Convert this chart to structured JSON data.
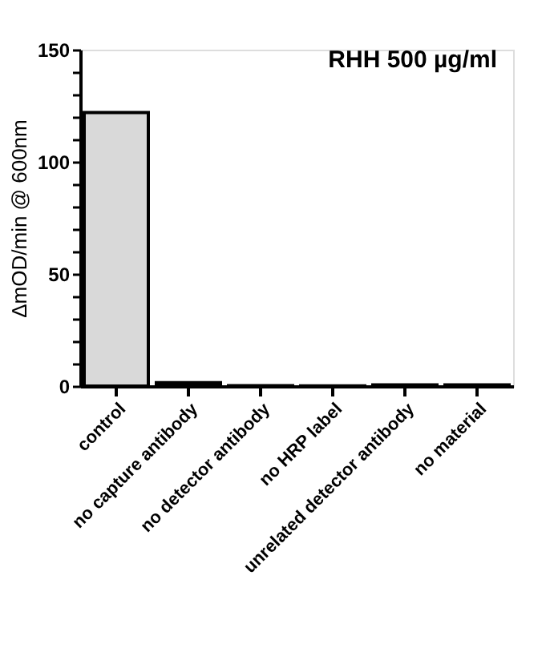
{
  "chart_data": {
    "type": "bar",
    "title": "RHH 500 µg/ml",
    "ylabel": "ΔmOD/min @ 600nm",
    "categories": [
      "control",
      "no capture antibody",
      "no detector antibody",
      "no HRP label",
      "unrelated detector antibody",
      "no material"
    ],
    "values": [
      122,
      1.5,
      0.2,
      0.1,
      0.5,
      0.5
    ],
    "colors": [
      "#d9d9d9",
      "#000000",
      "#000000",
      "#000000",
      "#000000",
      "#000000"
    ],
    "ylim": [
      0,
      150
    ],
    "yticks": [
      0,
      {
        "value": 10,
        "label": null
      },
      {
        "value": 20,
        "label": null
      },
      {
        "value": 30,
        "label": null
      },
      {
        "value": 40,
        "label": null
      },
      50,
      {
        "value": 60,
        "label": null
      },
      {
        "value": 70,
        "label": null
      },
      {
        "value": 80,
        "label": null
      },
      {
        "value": 90,
        "label": null
      },
      100,
      {
        "value": 110,
        "label": null
      },
      {
        "value": 120,
        "label": null
      },
      {
        "value": 130,
        "label": null
      },
      {
        "value": 140,
        "label": null
      },
      150
    ],
    "grid": false
  }
}
